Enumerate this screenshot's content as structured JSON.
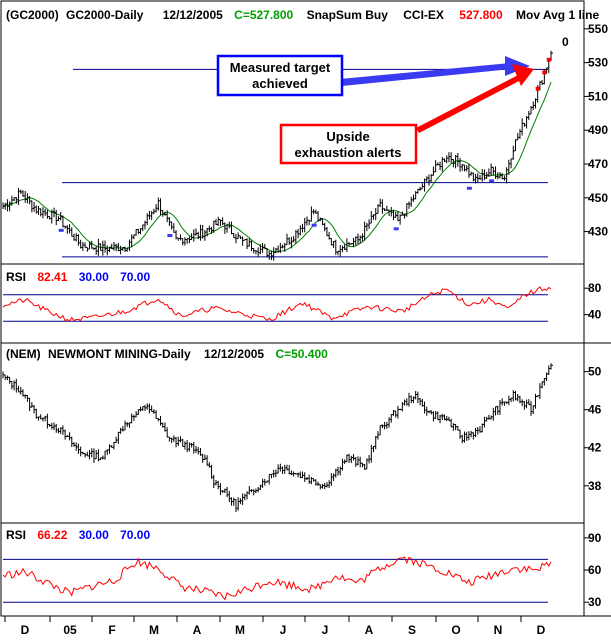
{
  "chart_data": {
    "type": "ohlc",
    "colors": {
      "bars": "#000000",
      "moving_average": "#008000",
      "rsi_line": "#ff0000",
      "reference_lines": "#00008b",
      "close_value": "#00a000",
      "cci_value": "#ff0000",
      "rsi_low": "#0000ff",
      "rsi_high": "#0000ff",
      "signal_markers": "#3a3af0",
      "blue_arrow": "#3a3af0",
      "red_arrow": "#ff0000"
    },
    "x_axis": {
      "labels": [
        "D",
        "05",
        "F",
        "M",
        "A",
        "M",
        "J",
        "J",
        "A",
        "S",
        "O",
        "N",
        "D"
      ]
    },
    "panels": [
      {
        "id": "gold",
        "header": {
          "symbol": "(GC2000)",
          "name": "GC2000-Daily",
          "date": "12/12/2005",
          "close": "C=527.800",
          "indicator_name": "SnapSum Buy",
          "cci_label": "CCI-EX",
          "cci_value": "527.800",
          "ma_label": "Mov Avg 1 line"
        },
        "y_ticks": [
          "550",
          "530",
          "510",
          "490",
          "470",
          "450",
          "430"
        ],
        "y_range": [
          412,
          557
        ],
        "top_tick_label": "0",
        "reference_levels": [
          526,
          459,
          415
        ],
        "annotations": [
          {
            "text_lines": [
              "Measured target",
              "achieved"
            ],
            "box_color": "#0000ff"
          },
          {
            "text_lines": [
              "Upside",
              "exhaustion alerts"
            ],
            "box_color": "#ff0000"
          }
        ],
        "key_points": [
          {
            "x": 0,
            "y": 445
          },
          {
            "x": 8,
            "y": 453
          },
          {
            "x": 15,
            "y": 443
          },
          {
            "x": 25,
            "y": 438
          },
          {
            "x": 35,
            "y": 422
          },
          {
            "x": 45,
            "y": 420
          },
          {
            "x": 55,
            "y": 421
          },
          {
            "x": 62,
            "y": 432
          },
          {
            "x": 70,
            "y": 447
          },
          {
            "x": 78,
            "y": 425
          },
          {
            "x": 88,
            "y": 428
          },
          {
            "x": 98,
            "y": 436
          },
          {
            "x": 108,
            "y": 424
          },
          {
            "x": 120,
            "y": 417
          },
          {
            "x": 130,
            "y": 426
          },
          {
            "x": 140,
            "y": 442
          },
          {
            "x": 150,
            "y": 420
          },
          {
            "x": 160,
            "y": 425
          },
          {
            "x": 170,
            "y": 445
          },
          {
            "x": 178,
            "y": 436
          },
          {
            "x": 185,
            "y": 450
          },
          {
            "x": 193,
            "y": 464
          },
          {
            "x": 200,
            "y": 475
          },
          {
            "x": 207,
            "y": 470
          },
          {
            "x": 213,
            "y": 460
          },
          {
            "x": 220,
            "y": 466
          },
          {
            "x": 226,
            "y": 462
          },
          {
            "x": 230,
            "y": 480
          },
          {
            "x": 235,
            "y": 495
          },
          {
            "x": 240,
            "y": 510
          },
          {
            "x": 243,
            "y": 520
          },
          {
            "x": 245,
            "y": 528
          },
          {
            "x": 247,
            "y": 537
          }
        ],
        "signal_markers_x": [
          26,
          75,
          140,
          177,
          210,
          220
        ]
      },
      {
        "id": "gold-rsi",
        "header": {
          "label": "RSI",
          "value": "82.41",
          "low": "30.00",
          "high": "70.00"
        },
        "y_ticks": [
          "80",
          "40"
        ],
        "y_range": [
          0,
          100
        ],
        "reference_levels": [
          70,
          30
        ],
        "key_points": [
          {
            "x": 0,
            "y": 55
          },
          {
            "x": 10,
            "y": 62
          },
          {
            "x": 20,
            "y": 45
          },
          {
            "x": 30,
            "y": 32
          },
          {
            "x": 40,
            "y": 35
          },
          {
            "x": 55,
            "y": 45
          },
          {
            "x": 70,
            "y": 65
          },
          {
            "x": 80,
            "y": 38
          },
          {
            "x": 95,
            "y": 50
          },
          {
            "x": 110,
            "y": 40
          },
          {
            "x": 120,
            "y": 32
          },
          {
            "x": 135,
            "y": 58
          },
          {
            "x": 148,
            "y": 35
          },
          {
            "x": 165,
            "y": 52
          },
          {
            "x": 180,
            "y": 45
          },
          {
            "x": 193,
            "y": 70
          },
          {
            "x": 200,
            "y": 78
          },
          {
            "x": 210,
            "y": 55
          },
          {
            "x": 220,
            "y": 63
          },
          {
            "x": 228,
            "y": 48
          },
          {
            "x": 235,
            "y": 70
          },
          {
            "x": 242,
            "y": 78
          },
          {
            "x": 247,
            "y": 82
          }
        ]
      },
      {
        "id": "nem",
        "header": {
          "symbol": "(NEM)",
          "name": "NEWMONT MINING-Daily",
          "date": "12/12/2005",
          "close": "C=50.400"
        },
        "y_ticks": [
          "50",
          "46",
          "42",
          "38"
        ],
        "y_range": [
          34.3,
          52.8
        ],
        "key_points": [
          {
            "x": 0,
            "y": 49.5
          },
          {
            "x": 8,
            "y": 48
          },
          {
            "x": 15,
            "y": 45.5
          },
          {
            "x": 25,
            "y": 44
          },
          {
            "x": 35,
            "y": 41.5
          },
          {
            "x": 45,
            "y": 41
          },
          {
            "x": 55,
            "y": 44.5
          },
          {
            "x": 65,
            "y": 46.5
          },
          {
            "x": 75,
            "y": 43
          },
          {
            "x": 85,
            "y": 42
          },
          {
            "x": 92,
            "y": 40.5
          },
          {
            "x": 95,
            "y": 38.5
          },
          {
            "x": 105,
            "y": 36
          },
          {
            "x": 115,
            "y": 38
          },
          {
            "x": 125,
            "y": 40
          },
          {
            "x": 135,
            "y": 39
          },
          {
            "x": 145,
            "y": 38
          },
          {
            "x": 155,
            "y": 41
          },
          {
            "x": 163,
            "y": 40
          },
          {
            "x": 170,
            "y": 44
          },
          {
            "x": 178,
            "y": 46
          },
          {
            "x": 185,
            "y": 47.5
          },
          {
            "x": 193,
            "y": 45.5
          },
          {
            "x": 200,
            "y": 45
          },
          {
            "x": 207,
            "y": 43
          },
          {
            "x": 215,
            "y": 44
          },
          {
            "x": 222,
            "y": 46
          },
          {
            "x": 230,
            "y": 47.5
          },
          {
            "x": 238,
            "y": 46
          },
          {
            "x": 243,
            "y": 49
          },
          {
            "x": 247,
            "y": 51
          }
        ]
      },
      {
        "id": "nem-rsi",
        "header": {
          "label": "RSI",
          "value": "66.22",
          "low": "30.00",
          "high": "70.00"
        },
        "y_ticks": [
          "90",
          "60",
          "30"
        ],
        "y_range": [
          19,
          102
        ],
        "reference_levels": [
          70,
          30
        ],
        "key_points": [
          {
            "x": 0,
            "y": 55
          },
          {
            "x": 10,
            "y": 58
          },
          {
            "x": 20,
            "y": 48
          },
          {
            "x": 30,
            "y": 38
          },
          {
            "x": 40,
            "y": 45
          },
          {
            "x": 50,
            "y": 50
          },
          {
            "x": 60,
            "y": 68
          },
          {
            "x": 70,
            "y": 62
          },
          {
            "x": 80,
            "y": 45
          },
          {
            "x": 90,
            "y": 40
          },
          {
            "x": 100,
            "y": 35
          },
          {
            "x": 110,
            "y": 42
          },
          {
            "x": 120,
            "y": 50
          },
          {
            "x": 130,
            "y": 46
          },
          {
            "x": 140,
            "y": 42
          },
          {
            "x": 150,
            "y": 55
          },
          {
            "x": 160,
            "y": 48
          },
          {
            "x": 170,
            "y": 62
          },
          {
            "x": 180,
            "y": 72
          },
          {
            "x": 190,
            "y": 65
          },
          {
            "x": 200,
            "y": 58
          },
          {
            "x": 210,
            "y": 48
          },
          {
            "x": 220,
            "y": 55
          },
          {
            "x": 230,
            "y": 62
          },
          {
            "x": 240,
            "y": 60
          },
          {
            "x": 247,
            "y": 66
          }
        ]
      }
    ]
  }
}
